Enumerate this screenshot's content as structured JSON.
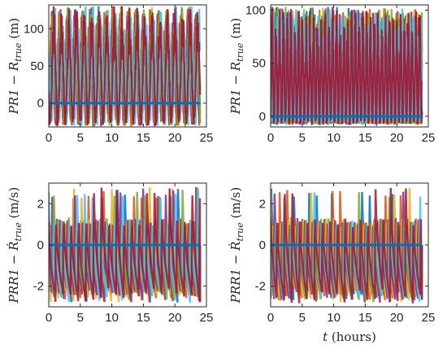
{
  "palette": [
    "#0072BD",
    "#D95319",
    "#EDB120",
    "#7E2F8E",
    "#77AC30",
    "#4DBEEE",
    "#A2142F"
  ],
  "chart_data": [
    {
      "type": "line",
      "panel": "top-left",
      "title": "",
      "ylabel": "PR1 − R_true (m)",
      "ylabel_parts": {
        "main": "PR1 − R",
        "sub": "true",
        "unit": " (m)"
      },
      "xlabel": "",
      "xlim": [
        0,
        25
      ],
      "ylim": [
        -32,
        132
      ],
      "xticks": [
        0,
        5,
        10,
        15,
        20,
        25
      ],
      "xtick_labels": [
        "0",
        "5",
        "10",
        "15",
        "20",
        "25"
      ],
      "yticks": [
        0,
        50,
        100
      ],
      "ytick_labels": [
        "0",
        "50",
        "100"
      ],
      "x_data_extent": [
        0,
        24
      ],
      "series_count": 7,
      "oscillation_period_hours": 1.2,
      "envelope": {
        "max": 130,
        "min": -30
      },
      "baseline": 0,
      "grid": false
    },
    {
      "type": "line",
      "panel": "top-right",
      "title": "",
      "ylabel": "PR1 − R_true (m)",
      "ylabel_parts": {
        "main": "PR1 − R",
        "sub": "true",
        "unit": " (m)"
      },
      "xlabel": "",
      "xlim": [
        0,
        25
      ],
      "ylim": [
        -10,
        105
      ],
      "xticks": [
        0,
        5,
        10,
        15,
        20,
        25
      ],
      "xtick_labels": [
        "0",
        "5",
        "10",
        "15",
        "20",
        "25"
      ],
      "yticks": [
        0,
        50,
        100
      ],
      "ytick_labels": [
        "0",
        "50",
        "100"
      ],
      "x_data_extent": [
        0,
        24
      ],
      "series_count": 7,
      "oscillation_period_hours": 0.6,
      "envelope": {
        "max": 103,
        "min": -7
      },
      "baseline": 0,
      "grid": false
    },
    {
      "type": "line",
      "panel": "bottom-left",
      "title": "",
      "ylabel": "PRR1 − Ṙ_true (m/s)",
      "ylabel_parts": {
        "main": "PRR1 − ",
        "dot": "Ṙ",
        "sub": "true",
        "unit": " (m/s)"
      },
      "xlabel": "",
      "xlim": [
        0,
        25
      ],
      "ylim": [
        -3,
        3
      ],
      "xticks": [
        0,
        5,
        10,
        15,
        20,
        25
      ],
      "xtick_labels": [
        "0",
        "5",
        "10",
        "15",
        "20",
        "25"
      ],
      "yticks": [
        -2,
        0,
        2
      ],
      "ytick_labels": [
        "-2",
        "0",
        "2"
      ],
      "x_data_extent": [
        0,
        24
      ],
      "series_count": 7,
      "spike_period_hours": 1.2,
      "envelope": {
        "max": 2.8,
        "min": -2.8
      },
      "baseline": 0,
      "grid": false
    },
    {
      "type": "line",
      "panel": "bottom-right",
      "title": "",
      "ylabel": "PRR1 − Ṙ_true (m/s)",
      "ylabel_parts": {
        "main": "PRR1 − ",
        "dot": "Ṙ",
        "sub": "true",
        "unit": " (m/s)"
      },
      "xlabel": "t (hours)",
      "xlabel_parts": {
        "var": "t",
        "unit": " (hours)"
      },
      "xlim": [
        0,
        25
      ],
      "ylim": [
        -3,
        3
      ],
      "xticks": [
        0,
        5,
        10,
        15,
        20,
        25
      ],
      "xtick_labels": [
        "0",
        "5",
        "10",
        "15",
        "20",
        "25"
      ],
      "yticks": [
        -2,
        0,
        2
      ],
      "ytick_labels": [
        "-2",
        "0",
        "2"
      ],
      "x_data_extent": [
        0,
        24
      ],
      "series_count": 7,
      "spike_period_hours": 1.2,
      "envelope": {
        "max": 2.8,
        "min": -2.8
      },
      "baseline": 0,
      "grid": false
    }
  ]
}
